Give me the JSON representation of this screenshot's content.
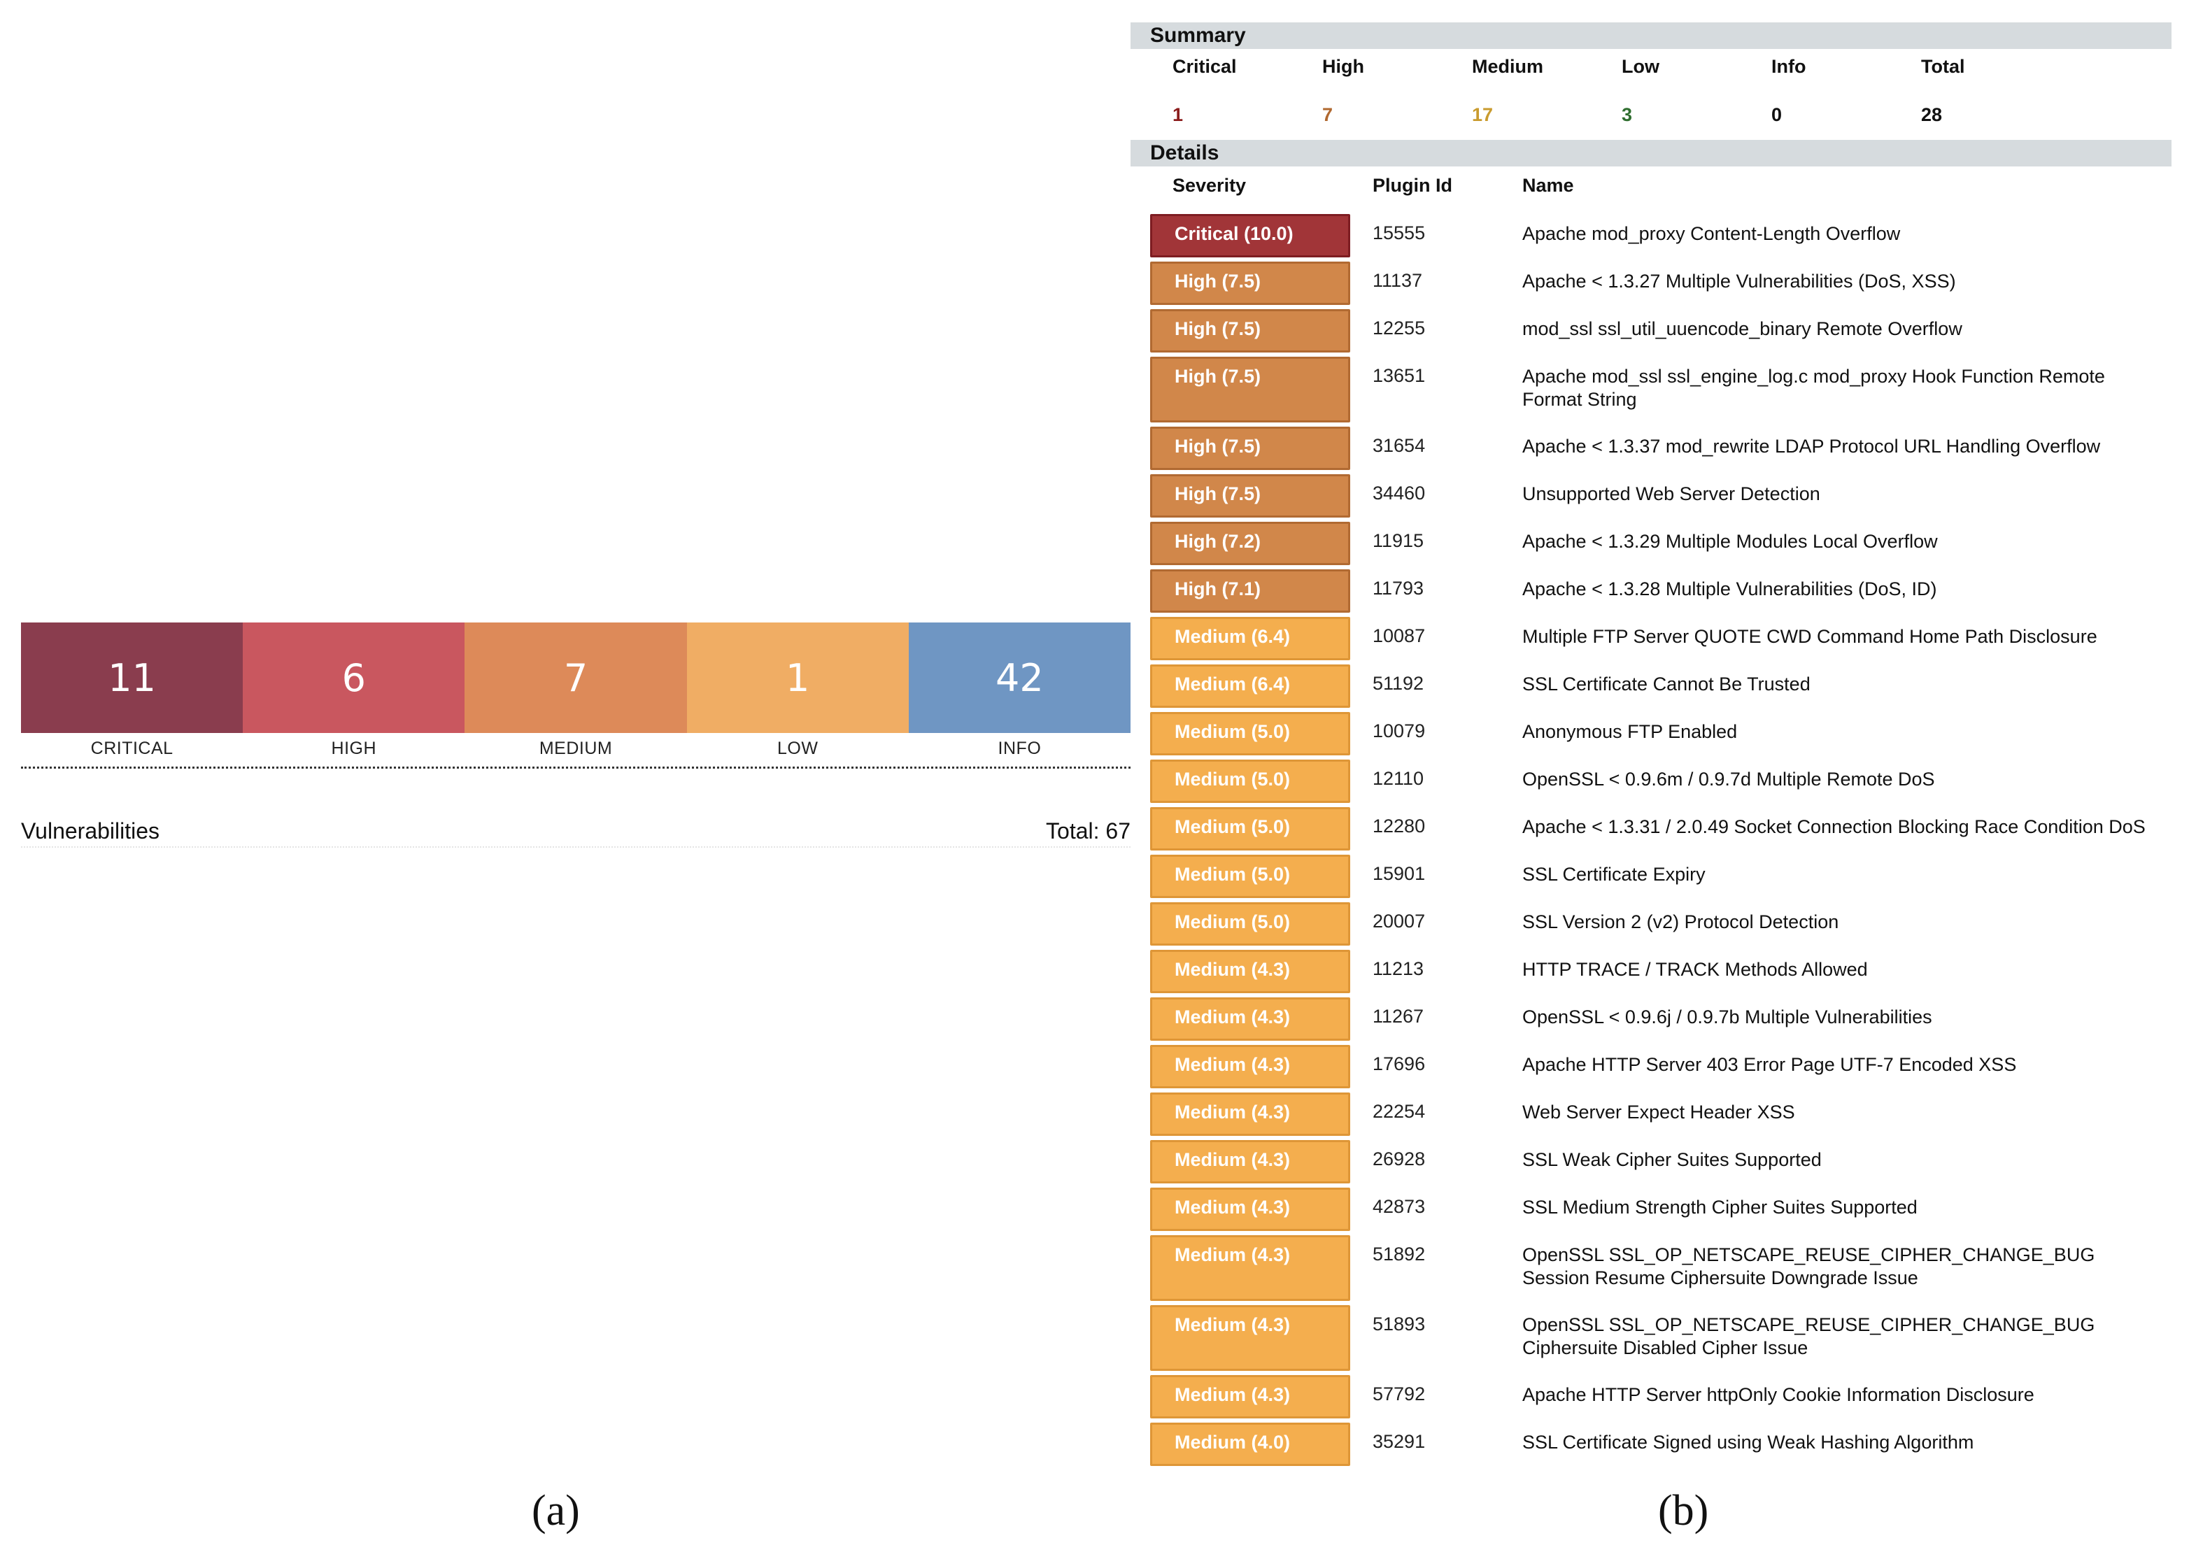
{
  "panel_a": {
    "segments": [
      {
        "count": "11",
        "label": "CRITICAL",
        "color": "#8a3d4e"
      },
      {
        "count": "6",
        "label": "HIGH",
        "color": "#c9575f"
      },
      {
        "count": "7",
        "label": "MEDIUM",
        "color": "#dd8a59"
      },
      {
        "count": "1",
        "label": "LOW",
        "color": "#f0ad64"
      },
      {
        "count": "42",
        "label": "INFO",
        "color": "#6f96c3"
      }
    ],
    "title": "Vulnerabilities",
    "total": "Total: 67"
  },
  "panel_b": {
    "summary": {
      "header": "Summary",
      "columns": [
        {
          "label": "Critical",
          "value": "1",
          "color": "#8b1c1c"
        },
        {
          "label": "High",
          "value": "7",
          "color": "#b0682f"
        },
        {
          "label": "Medium",
          "value": "17",
          "color": "#c99b2e"
        },
        {
          "label": "Low",
          "value": "3",
          "color": "#2f6e2f"
        },
        {
          "label": "Info",
          "value": "0",
          "color": "#111111"
        },
        {
          "label": "Total",
          "value": "28",
          "color": "#111111"
        }
      ]
    },
    "details": {
      "header": "Details",
      "col_severity": "Severity",
      "col_plugin": "Plugin Id",
      "col_name": "Name",
      "rows": [
        {
          "severity": "Critical (10.0)",
          "level": "critical",
          "plugin": "15555",
          "name": "Apache mod_proxy Content-Length Overflow"
        },
        {
          "severity": "High (7.5)",
          "level": "high",
          "plugin": "11137",
          "name": "Apache < 1.3.27 Multiple Vulnerabilities (DoS, XSS)"
        },
        {
          "severity": "High (7.5)",
          "level": "high",
          "plugin": "12255",
          "name": "mod_ssl ssl_util_uuencode_binary Remote Overflow"
        },
        {
          "severity": "High (7.5)",
          "level": "high",
          "plugin": "13651",
          "name": "Apache mod_ssl ssl_engine_log.c mod_proxy Hook Function Remote Format String"
        },
        {
          "severity": "High (7.5)",
          "level": "high",
          "plugin": "31654",
          "name": "Apache < 1.3.37 mod_rewrite LDAP Protocol URL Handling Overflow"
        },
        {
          "severity": "High (7.5)",
          "level": "high",
          "plugin": "34460",
          "name": "Unsupported Web Server Detection"
        },
        {
          "severity": "High (7.2)",
          "level": "high",
          "plugin": "11915",
          "name": "Apache < 1.3.29 Multiple Modules Local Overflow"
        },
        {
          "severity": "High (7.1)",
          "level": "high",
          "plugin": "11793",
          "name": "Apache < 1.3.28 Multiple Vulnerabilities (DoS, ID)"
        },
        {
          "severity": "Medium (6.4)",
          "level": "medium",
          "plugin": "10087",
          "name": "Multiple FTP Server QUOTE CWD Command Home Path Disclosure"
        },
        {
          "severity": "Medium (6.4)",
          "level": "medium",
          "plugin": "51192",
          "name": "SSL Certificate Cannot Be Trusted"
        },
        {
          "severity": "Medium (5.0)",
          "level": "medium",
          "plugin": "10079",
          "name": "Anonymous FTP Enabled"
        },
        {
          "severity": "Medium (5.0)",
          "level": "medium",
          "plugin": "12110",
          "name": "OpenSSL < 0.9.6m / 0.9.7d Multiple Remote DoS"
        },
        {
          "severity": "Medium (5.0)",
          "level": "medium",
          "plugin": "12280",
          "name": "Apache < 1.3.31 / 2.0.49 Socket Connection Blocking Race Condition DoS"
        },
        {
          "severity": "Medium (5.0)",
          "level": "medium",
          "plugin": "15901",
          "name": "SSL Certificate Expiry"
        },
        {
          "severity": "Medium (5.0)",
          "level": "medium",
          "plugin": "20007",
          "name": "SSL Version 2 (v2) Protocol Detection"
        },
        {
          "severity": "Medium (4.3)",
          "level": "medium",
          "plugin": "11213",
          "name": "HTTP TRACE / TRACK Methods Allowed"
        },
        {
          "severity": "Medium (4.3)",
          "level": "medium",
          "plugin": "11267",
          "name": "OpenSSL < 0.9.6j / 0.9.7b Multiple Vulnerabilities"
        },
        {
          "severity": "Medium (4.3)",
          "level": "medium",
          "plugin": "17696",
          "name": "Apache HTTP Server 403 Error Page UTF-7 Encoded XSS"
        },
        {
          "severity": "Medium (4.3)",
          "level": "medium",
          "plugin": "22254",
          "name": "Web Server Expect Header XSS"
        },
        {
          "severity": "Medium (4.3)",
          "level": "medium",
          "plugin": "26928",
          "name": "SSL Weak Cipher Suites Supported"
        },
        {
          "severity": "Medium (4.3)",
          "level": "medium",
          "plugin": "42873",
          "name": "SSL Medium Strength Cipher Suites Supported"
        },
        {
          "severity": "Medium (4.3)",
          "level": "medium",
          "plugin": "51892",
          "name": "OpenSSL SSL_OP_NETSCAPE_REUSE_CIPHER_CHANGE_BUG Session Resume Ciphersuite Downgrade Issue"
        },
        {
          "severity": "Medium (4.3)",
          "level": "medium",
          "plugin": "51893",
          "name": "OpenSSL SSL_OP_NETSCAPE_REUSE_CIPHER_CHANGE_BUG Ciphersuite Disabled Cipher Issue"
        },
        {
          "severity": "Medium (4.3)",
          "level": "medium",
          "plugin": "57792",
          "name": "Apache HTTP Server httpOnly Cookie Information Disclosure"
        },
        {
          "severity": "Medium (4.0)",
          "level": "medium",
          "plugin": "35291",
          "name": "SSL Certificate Signed using Weak Hashing Algorithm"
        }
      ]
    }
  },
  "captions": {
    "a": "(a)",
    "b": "(b)"
  }
}
